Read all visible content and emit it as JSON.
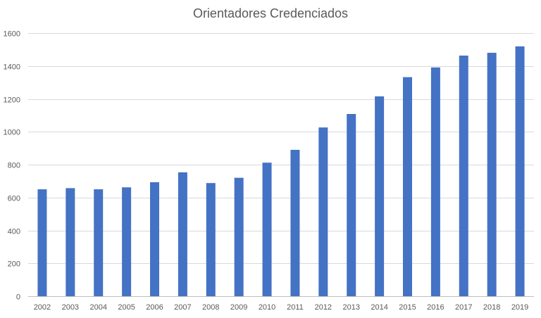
{
  "chart_data": {
    "type": "bar",
    "title": "Orientadores Credenciados",
    "xlabel": "",
    "ylabel": "",
    "categories": [
      "2002",
      "2003",
      "2004",
      "2005",
      "2006",
      "2007",
      "2008",
      "2009",
      "2010",
      "2011",
      "2012",
      "2013",
      "2014",
      "2015",
      "2016",
      "2017",
      "2018",
      "2019"
    ],
    "values": [
      650,
      657,
      650,
      662,
      693,
      753,
      688,
      720,
      812,
      890,
      1026,
      1108,
      1215,
      1332,
      1391,
      1463,
      1480,
      1519
    ],
    "ylim": [
      0,
      1600
    ],
    "yticks": [
      0,
      200,
      400,
      600,
      800,
      1000,
      1200,
      1400,
      1600
    ],
    "grid": true,
    "legend": "none",
    "colors": {
      "bar": "#4472C4",
      "grid": "#d9d9d9",
      "axis": "#bfbfbf",
      "text": "#595959"
    }
  }
}
